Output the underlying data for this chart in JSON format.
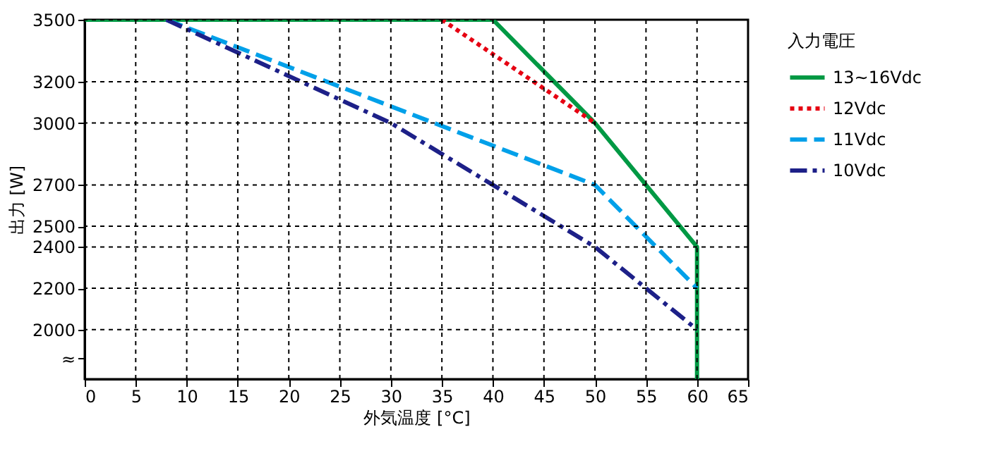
{
  "chart_data": {
    "type": "line",
    "xlabel": "外気温度 [°C]",
    "ylabel": "出力 [W]",
    "legend_title": "入力電圧",
    "xlim": [
      0,
      65
    ],
    "xticks": [
      0,
      5,
      10,
      15,
      20,
      25,
      30,
      35,
      40,
      45,
      50,
      55,
      60,
      65
    ],
    "ylim": [
      1760,
      3500
    ],
    "yticks": [
      {
        "value": 1860,
        "label": "≈"
      },
      2000,
      2200,
      2400,
      2500,
      2700,
      3000,
      3200,
      3500
    ],
    "grid": true,
    "legend": "right",
    "marker": "none",
    "series": [
      {
        "name": "13~16Vdc",
        "color": "#009944",
        "line_style": "solid",
        "x": [
          0,
          40,
          50,
          60,
          60
        ],
        "values": [
          3500,
          3500,
          3000,
          2400,
          1760
        ]
      },
      {
        "name": "12Vdc",
        "color": "#e60012",
        "line_style": "dotted",
        "x": [
          35,
          50
        ],
        "values": [
          3500,
          3000
        ]
      },
      {
        "name": "11Vdc",
        "color": "#00a0e9",
        "line_style": "dashed",
        "x": [
          8,
          50,
          60
        ],
        "values": [
          3500,
          2700,
          2200
        ]
      },
      {
        "name": "10Vdc",
        "color": "#1d2088",
        "line_style": "dashdot",
        "x": [
          8,
          30,
          50,
          60
        ],
        "values": [
          3500,
          3000,
          2400,
          2000
        ]
      }
    ]
  }
}
